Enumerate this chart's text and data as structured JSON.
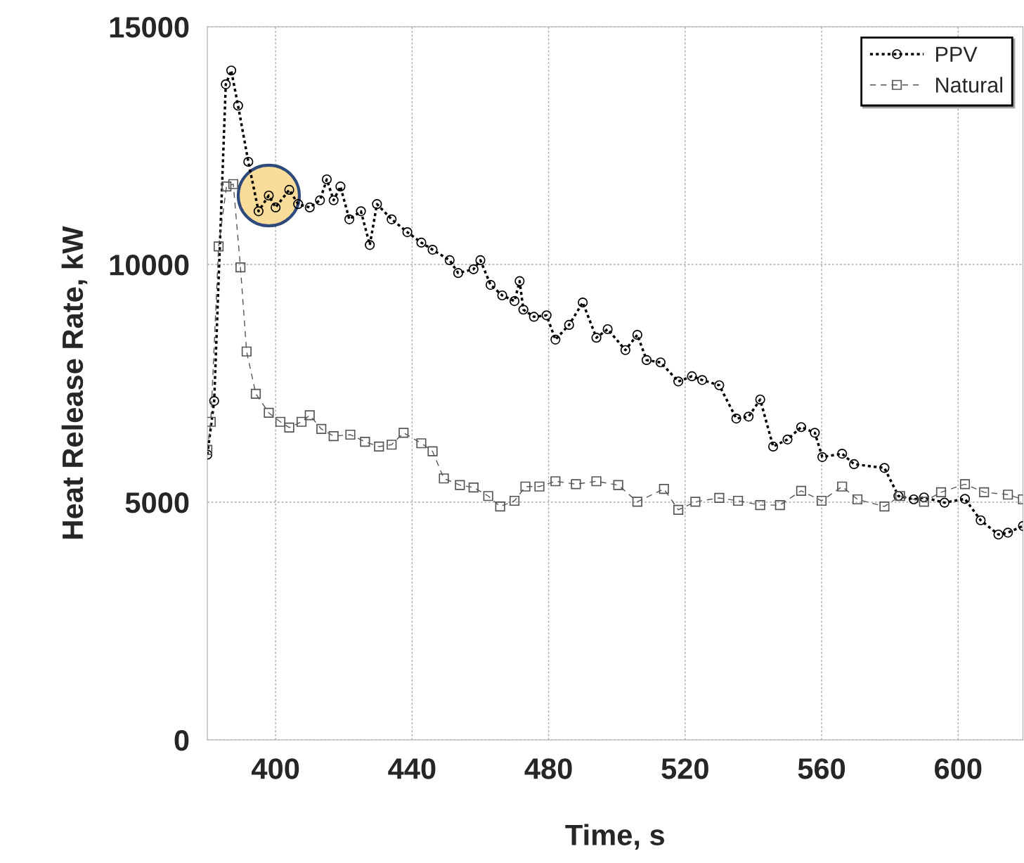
{
  "chart_data": {
    "type": "line",
    "xlabel": "Time, s",
    "ylabel": "Heat Release Rate, kW",
    "xlim": [
      380,
      619
    ],
    "xticks": [
      400,
      440,
      480,
      520,
      560,
      600
    ],
    "ylim": [
      0,
      15000
    ],
    "yticks": [
      0,
      5000,
      10000,
      15000
    ],
    "grid": true,
    "legend": "top right",
    "series": [
      {
        "name": "PPV",
        "color": "#000000",
        "marker": "circle",
        "line_style": "dotted",
        "x": [
          380,
          382,
          385.4,
          387,
          389,
          392,
          395,
          398,
          400,
          404,
          406.6,
          410,
          413,
          415,
          417,
          419,
          421.6,
          425,
          427.6,
          429.7,
          434,
          438.6,
          442.7,
          446,
          451,
          453.5,
          458,
          460,
          463,
          466.4,
          470,
          471.5,
          472.6,
          475.7,
          479.4,
          482,
          486,
          490,
          494,
          497.3,
          502.5,
          506,
          508.7,
          512.8,
          518,
          522,
          525,
          530,
          535,
          538.6,
          542,
          545.8,
          550,
          554,
          558,
          560.2,
          566,
          569.5,
          578.4,
          582.5,
          587,
          590,
          596,
          602,
          606.6,
          611.8,
          614.6,
          619
        ],
        "values": [
          6000,
          7130,
          13790,
          14080,
          13340,
          12160,
          11120,
          11450,
          11200,
          11570,
          11270,
          11200,
          11350,
          11790,
          11350,
          11640,
          10950,
          11120,
          10410,
          11270,
          10950,
          10680,
          10460,
          10310,
          10090,
          9820,
          9900,
          10090,
          9570,
          9350,
          9230,
          9650,
          9050,
          8900,
          8930,
          8420,
          8730,
          9200,
          8460,
          8640,
          8200,
          8520,
          7990,
          7940,
          7540,
          7650,
          7570,
          7460,
          6760,
          6800,
          7160,
          6170,
          6320,
          6580,
          6460,
          5950,
          6020,
          5800,
          5720,
          5130,
          5060,
          5100,
          4990,
          5070,
          4620,
          4320,
          4360,
          4500
        ]
      },
      {
        "name": "Natural",
        "color": "#555555",
        "marker": "square",
        "line_style": "dashed",
        "x": [
          380,
          381,
          383.3,
          385.6,
          387.6,
          389.7,
          391.5,
          394.2,
          398,
          401.4,
          404,
          407.6,
          410,
          413.4,
          417,
          421.9,
          426.2,
          430.3,
          434,
          437.5,
          442.7,
          446,
          449.3,
          454,
          458,
          462.3,
          465.8,
          470,
          473.2,
          477.3,
          482,
          488,
          494,
          500.4,
          506,
          513.8,
          518,
          523,
          530,
          535.5,
          542,
          547.8,
          554,
          560,
          566,
          570.5,
          578.4,
          583,
          590,
          595,
          602,
          607.6,
          614.6,
          619
        ],
        "values": [
          6100,
          6690,
          10380,
          11640,
          11690,
          9940,
          8170,
          7280,
          6880,
          6690,
          6570,
          6690,
          6830,
          6540,
          6390,
          6420,
          6270,
          6170,
          6210,
          6460,
          6240,
          6070,
          5500,
          5360,
          5310,
          5130,
          4910,
          5030,
          5330,
          5330,
          5440,
          5380,
          5440,
          5360,
          5010,
          5280,
          4840,
          5010,
          5090,
          5030,
          4940,
          4940,
          5240,
          5030,
          5330,
          5060,
          4910,
          5130,
          5010,
          5210,
          5380,
          5210,
          5160,
          5060
        ]
      }
    ]
  }
}
